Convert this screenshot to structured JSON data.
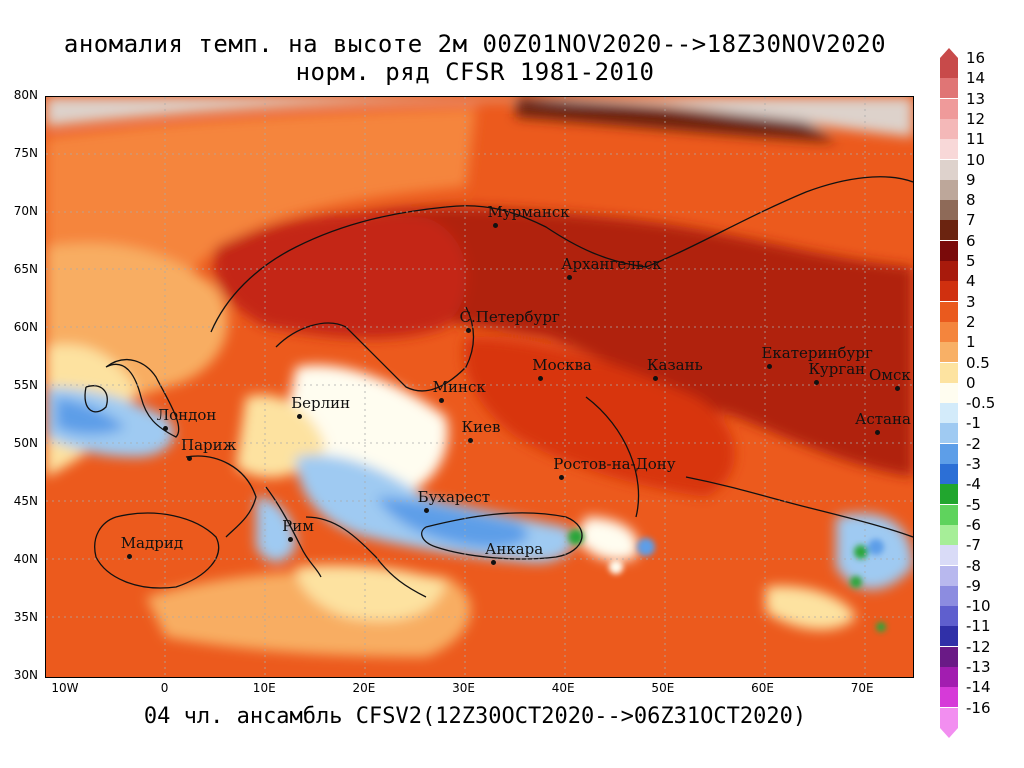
{
  "title_line1": "аномалия темп. на высоте 2м 00Z01NOV2020-->18Z30NOV2020",
  "title_line2": "норм. ряд CFSR 1981-2010",
  "footer": "04 чл. ансамбль CFSV2(12Z30OCT2020-->06Z31OCT2020)",
  "lat_labels": [
    "80N",
    "75N",
    "70N",
    "65N",
    "60N",
    "55N",
    "50N",
    "45N",
    "40N",
    "35N",
    "30N"
  ],
  "lon_labels": [
    "10W",
    "0",
    "10E",
    "20E",
    "30E",
    "40E",
    "50E",
    "60E",
    "70E"
  ],
  "cities": [
    {
      "name": "Мурманск",
      "lon": 33.1,
      "lat": 68.97
    },
    {
      "name": "Архангельск",
      "lon": 40.5,
      "lat": 64.5
    },
    {
      "name": "С.Петербург",
      "lon": 30.3,
      "lat": 59.9
    },
    {
      "name": "Москва",
      "lon": 37.6,
      "lat": 55.75
    },
    {
      "name": "Казань",
      "lon": 49.1,
      "lat": 55.8
    },
    {
      "name": "Екатеринбург",
      "lon": 60.6,
      "lat": 56.8
    },
    {
      "name": "Курган",
      "lon": 65.3,
      "lat": 55.45
    },
    {
      "name": "Омск",
      "lon": 73.4,
      "lat": 54.95
    },
    {
      "name": "Астана",
      "lon": 71.4,
      "lat": 51.15
    },
    {
      "name": "Минск",
      "lon": 27.6,
      "lat": 53.9
    },
    {
      "name": "Киев",
      "lon": 30.5,
      "lat": 50.45
    },
    {
      "name": "Берлин",
      "lon": 13.4,
      "lat": 52.5
    },
    {
      "name": "Лондон",
      "lon": -0.1,
      "lat": 51.5
    },
    {
      "name": "Париж",
      "lon": 2.35,
      "lat": 48.85
    },
    {
      "name": "Ростов-на-Дону",
      "lon": 39.7,
      "lat": 47.2
    },
    {
      "name": "Бухарест",
      "lon": 26.1,
      "lat": 44.4
    },
    {
      "name": "Рим",
      "lon": 12.5,
      "lat": 41.9
    },
    {
      "name": "Мадрид",
      "lon": -3.7,
      "lat": 40.4
    },
    {
      "name": "Анкара",
      "lon": 32.85,
      "lat": 39.9
    }
  ],
  "legend": {
    "labels": [
      "16",
      "14",
      "13",
      "12",
      "11",
      "10",
      "9",
      "8",
      "7",
      "6",
      "5",
      "4",
      "3",
      "2",
      "1",
      "0.5",
      "0",
      "-0.5",
      "-1",
      "-2",
      "-3",
      "-4",
      "-5",
      "-6",
      "-7",
      "-8",
      "-9",
      "-10",
      "-11",
      "-12",
      "-13",
      "-14",
      "-16"
    ],
    "colors": [
      "#c84a4a",
      "#e07575",
      "#ef9a9a",
      "#f4b8b8",
      "#f8d8d8",
      "#ded2cc",
      "#bda79a",
      "#8e6a58",
      "#6b2410",
      "#7a0a0a",
      "#a81a0c",
      "#d0300f",
      "#ea5a1e",
      "#f4853d",
      "#f8b066",
      "#fde3a0",
      "#fffdf0",
      "#d3ebfa",
      "#9fcaf2",
      "#5d9ee8",
      "#2c6fd6",
      "#21a62e",
      "#5fd35d",
      "#a6ee98",
      "#d9dbf7",
      "#b8b8ee",
      "#8c8ce0",
      "#5f5fce",
      "#3030a8",
      "#6a1a86",
      "#a21db0",
      "#d63ad8",
      "#f28ef0"
    ]
  },
  "map_colors": {
    "arctic_gray": "#ddd2cb",
    "deep_red": "#b0200e",
    "red": "#d8360f",
    "orange_red": "#ec5a1d",
    "orange": "#f5853c",
    "light_orange": "#f8ad62",
    "pale": "#fde2a0",
    "white": "#fffdf0",
    "light_blue": "#9fcaf2",
    "blue": "#5d9ee8",
    "green": "#2aa63a"
  }
}
